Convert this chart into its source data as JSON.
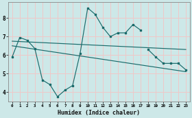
{
  "xlabel": "Humidex (Indice chaleur)",
  "background_color": "#cde8e8",
  "grid_color": "#f0c8c8",
  "line_color": "#1a6b6b",
  "xlim": [
    -0.5,
    23.5
  ],
  "ylim": [
    3.5,
    8.85
  ],
  "xticks": [
    0,
    1,
    2,
    3,
    4,
    5,
    6,
    7,
    8,
    9,
    10,
    11,
    12,
    13,
    14,
    15,
    16,
    17,
    18,
    19,
    20,
    21,
    22,
    23
  ],
  "yticks": [
    4,
    5,
    6,
    7,
    8
  ],
  "wavy_x": [
    0,
    1,
    2,
    3,
    4,
    5,
    6,
    7,
    8,
    9,
    10,
    11,
    12,
    13,
    14,
    15,
    16,
    17
  ],
  "wavy_y": [
    5.9,
    6.95,
    6.8,
    6.35,
    4.65,
    4.4,
    3.75,
    4.1,
    4.35,
    6.1,
    8.55,
    8.2,
    7.5,
    7.0,
    7.2,
    7.2,
    7.65,
    7.35
  ],
  "right_x": [
    18,
    19,
    20,
    21,
    22,
    23
  ],
  "right_y": [
    6.3,
    5.9,
    5.55,
    5.55,
    5.55,
    5.2
  ],
  "line1_x": [
    0,
    23
  ],
  "line1_y": [
    6.75,
    6.3
  ],
  "line2_x": [
    0,
    23
  ],
  "line2_y": [
    6.5,
    5.1
  ]
}
